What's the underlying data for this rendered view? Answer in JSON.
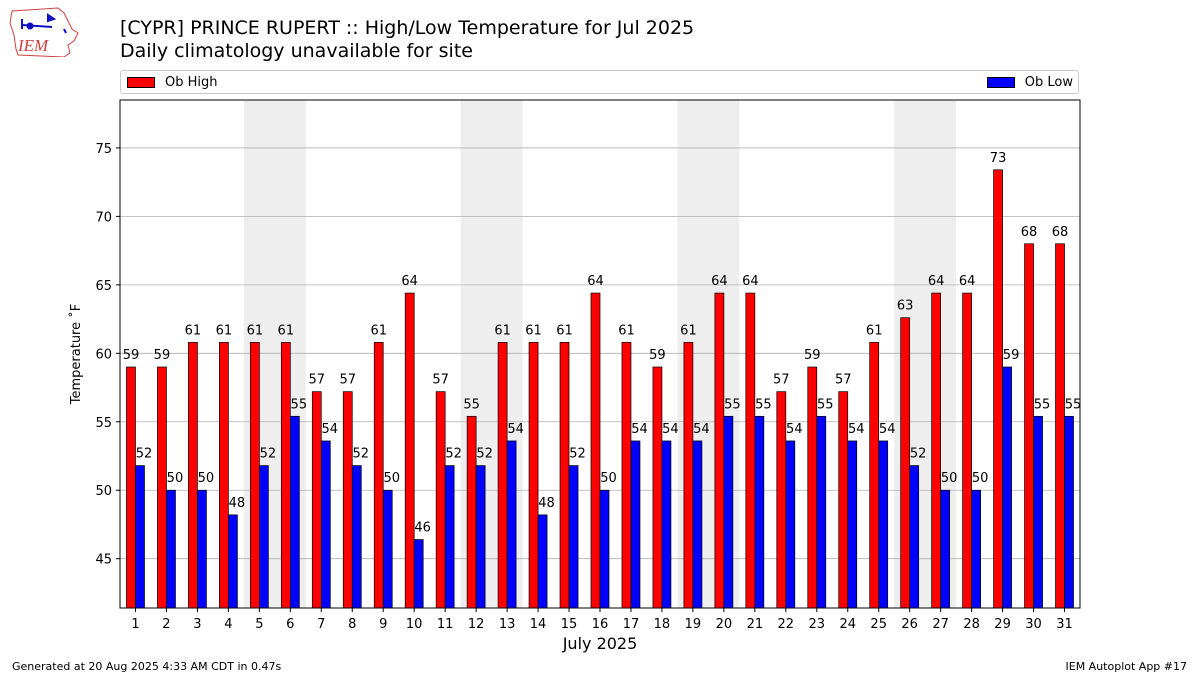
{
  "logo": {
    "text": "IEM"
  },
  "chart_data": {
    "type": "bar",
    "title": "[CYPR] PRINCE RUPERT :: High/Low Temperature for Jul 2025",
    "subtitle": "Daily climatology unavailable for site",
    "xlabel": "July 2025",
    "ylabel": "Temperature ˚F",
    "ylim": [
      41.4,
      78.5
    ],
    "yticks": [
      45,
      50,
      55,
      60,
      65,
      70,
      75
    ],
    "grid": "horizontal",
    "legend_placement": "top",
    "categories": [
      "1",
      "2",
      "3",
      "4",
      "5",
      "6",
      "7",
      "8",
      "9",
      "10",
      "11",
      "12",
      "13",
      "14",
      "15",
      "16",
      "17",
      "18",
      "19",
      "20",
      "21",
      "22",
      "23",
      "24",
      "25",
      "26",
      "27",
      "28",
      "29",
      "30",
      "31"
    ],
    "weekend_shading_pairs": [
      [
        5,
        6
      ],
      [
        12,
        13
      ],
      [
        19,
        20
      ],
      [
        26,
        27
      ]
    ],
    "series": [
      {
        "name": "Ob High",
        "color": "#ff0000",
        "values": [
          59,
          59,
          61,
          61,
          61,
          61,
          57,
          57,
          61,
          64,
          57,
          55,
          61,
          61,
          61,
          64,
          61,
          59,
          61,
          64,
          64,
          57,
          59,
          57,
          61,
          63,
          64,
          64,
          73,
          68,
          68
        ],
        "plotted": [
          59.0,
          59.0,
          60.8,
          60.8,
          60.8,
          60.8,
          57.2,
          57.2,
          60.8,
          64.4,
          57.2,
          55.4,
          60.8,
          60.8,
          60.8,
          64.4,
          60.8,
          59.0,
          60.8,
          64.4,
          64.4,
          57.2,
          59.0,
          57.2,
          60.8,
          62.6,
          64.4,
          64.4,
          73.4,
          68.0,
          68.0
        ]
      },
      {
        "name": "Ob Low",
        "color": "#0000ff",
        "values": [
          52,
          50,
          50,
          48,
          52,
          55,
          54,
          52,
          50,
          46,
          52,
          52,
          54,
          48,
          52,
          50,
          54,
          54,
          54,
          55,
          55,
          54,
          55,
          54,
          54,
          52,
          50,
          50,
          59,
          55,
          55
        ],
        "plotted": [
          51.8,
          50.0,
          50.0,
          48.2,
          51.8,
          55.4,
          53.6,
          51.8,
          50.0,
          46.4,
          51.8,
          51.8,
          53.6,
          48.2,
          51.8,
          50.0,
          53.6,
          53.6,
          53.6,
          55.4,
          55.4,
          53.6,
          55.4,
          53.6,
          53.6,
          51.8,
          50.0,
          50.0,
          59.0,
          55.4,
          55.4
        ]
      }
    ]
  },
  "footer": {
    "generated": "Generated at 20 Aug 2025 4:33 AM CDT in 0.47s",
    "app": "IEM Autoplot App #17"
  }
}
